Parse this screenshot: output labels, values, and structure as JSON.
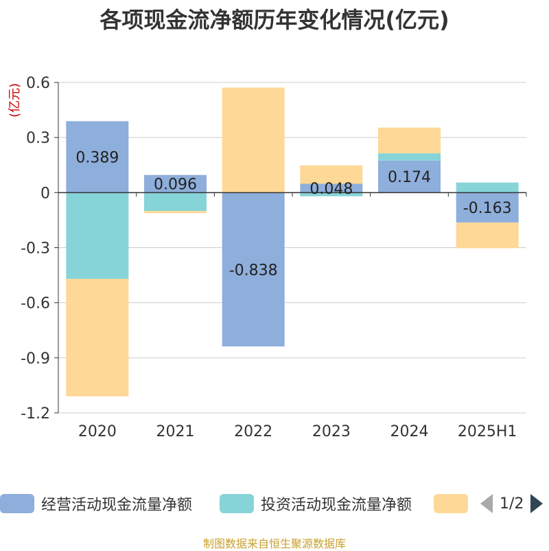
{
  "title": "各项现金流净额历年变化情况(亿元)",
  "source": "制图数据来自恒生聚源数据库",
  "legend_pager": "1/2",
  "chart_data": {
    "type": "bar",
    "stacked": true,
    "ylabel": "(亿元)",
    "ylim": [
      -1.2,
      0.6
    ],
    "yticks": [
      "0.6",
      "0.3",
      "0",
      "-0.3",
      "-0.6",
      "-0.9",
      "-1.2"
    ],
    "ytick_values": [
      0.6,
      0.3,
      0,
      -0.3,
      -0.6,
      -0.9,
      -1.2
    ],
    "grid": true,
    "categories": [
      "2020",
      "2021",
      "2022",
      "2023",
      "2024",
      "2025H1"
    ],
    "series": [
      {
        "name": "经营活动现金流量净额",
        "color": "#8eaedb",
        "values": [
          0.389,
          0.096,
          -0.838,
          0.048,
          0.174,
          -0.163
        ],
        "labels": [
          "0.389",
          "0.096",
          "-0.838",
          "0.048",
          "0.174",
          "-0.163"
        ]
      },
      {
        "name": "投资活动现金流量净额",
        "color": "#87d4d8",
        "values": [
          -0.47,
          -0.1,
          0,
          -0.02,
          0.04,
          0.055
        ]
      },
      {
        "name": "",
        "color": "#fed897",
        "values": [
          -0.64,
          -0.012,
          0.572,
          0.1,
          0.14,
          -0.14
        ]
      }
    ]
  }
}
